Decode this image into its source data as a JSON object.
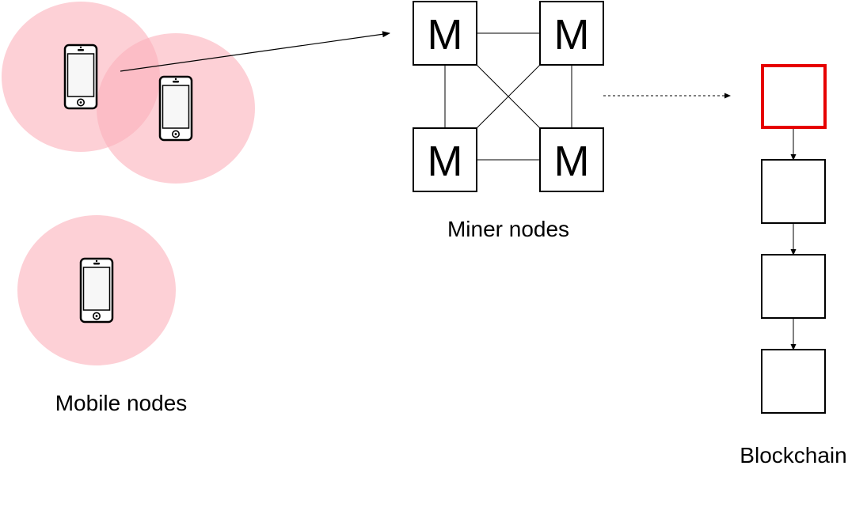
{
  "colors": {
    "coverage_fill": "#fbb0ba",
    "highlight_block": "#e60000",
    "stroke": "#000000",
    "screen": "#f7f7f7"
  },
  "icons": [
    "smartphone-icon"
  ],
  "mobile_nodes": {
    "label": "Mobile nodes",
    "phones": [
      {
        "icon": "smartphone-icon"
      },
      {
        "icon": "smartphone-icon"
      },
      {
        "icon": "smartphone-icon"
      }
    ]
  },
  "miner_nodes": {
    "label": "Miner nodes",
    "nodes": [
      {
        "text": "M"
      },
      {
        "text": "M"
      },
      {
        "text": "M"
      },
      {
        "text": "M"
      }
    ]
  },
  "blockchain": {
    "label": "Blockchain",
    "block_count": 4,
    "highlighted_block": "top"
  }
}
